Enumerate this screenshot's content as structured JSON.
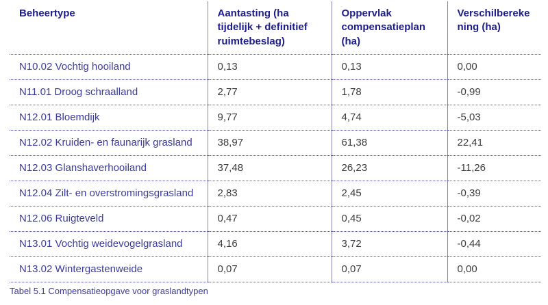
{
  "table": {
    "headers": [
      "Beheertype",
      "Aantasting (ha tijdelijk + definitief ruimtebeslag)",
      "Oppervlak compensatieplan (ha)",
      "Verschilberekening (ha)"
    ],
    "rows": [
      [
        "N10.02 Vochtig hooiland",
        "0,13",
        "0,13",
        "0,00"
      ],
      [
        "N11.01 Droog schraalland",
        "2,77",
        "1,78",
        "-0,99"
      ],
      [
        "N12.01 Bloemdijk",
        "9,77",
        "4,74",
        "-5,03"
      ],
      [
        "N12.02 Kruiden- en faunarijk grasland",
        "38,97",
        "61,38",
        "22,41"
      ],
      [
        "N12.03 Glanshaverhooiland",
        "37,48",
        "26,23",
        "-11,26"
      ],
      [
        "N12.04 Zilt- en overstromingsgrasland",
        "2,83",
        "2,45",
        "-0,39"
      ],
      [
        "N12.06 Ruigteveld",
        "0,47",
        "0,45",
        "-0,02"
      ],
      [
        "N13.01 Vochtig weidevogelgrasland",
        "4,16",
        "3,72",
        "-0,44"
      ],
      [
        "N13.02 Wintergastenweide",
        "0,07",
        "0,07",
        "0,00"
      ]
    ],
    "caption": "Tabel 5.1 Compensatieopgave voor graslandtypen"
  },
  "colors": {
    "header_text": "#1c1c8a",
    "row_label_text": "#3a3a9c",
    "value_text": "#3c3c3c",
    "vertical_line": "#8383ae",
    "dotted_line": "#5050a8",
    "background": "#ffffff"
  }
}
